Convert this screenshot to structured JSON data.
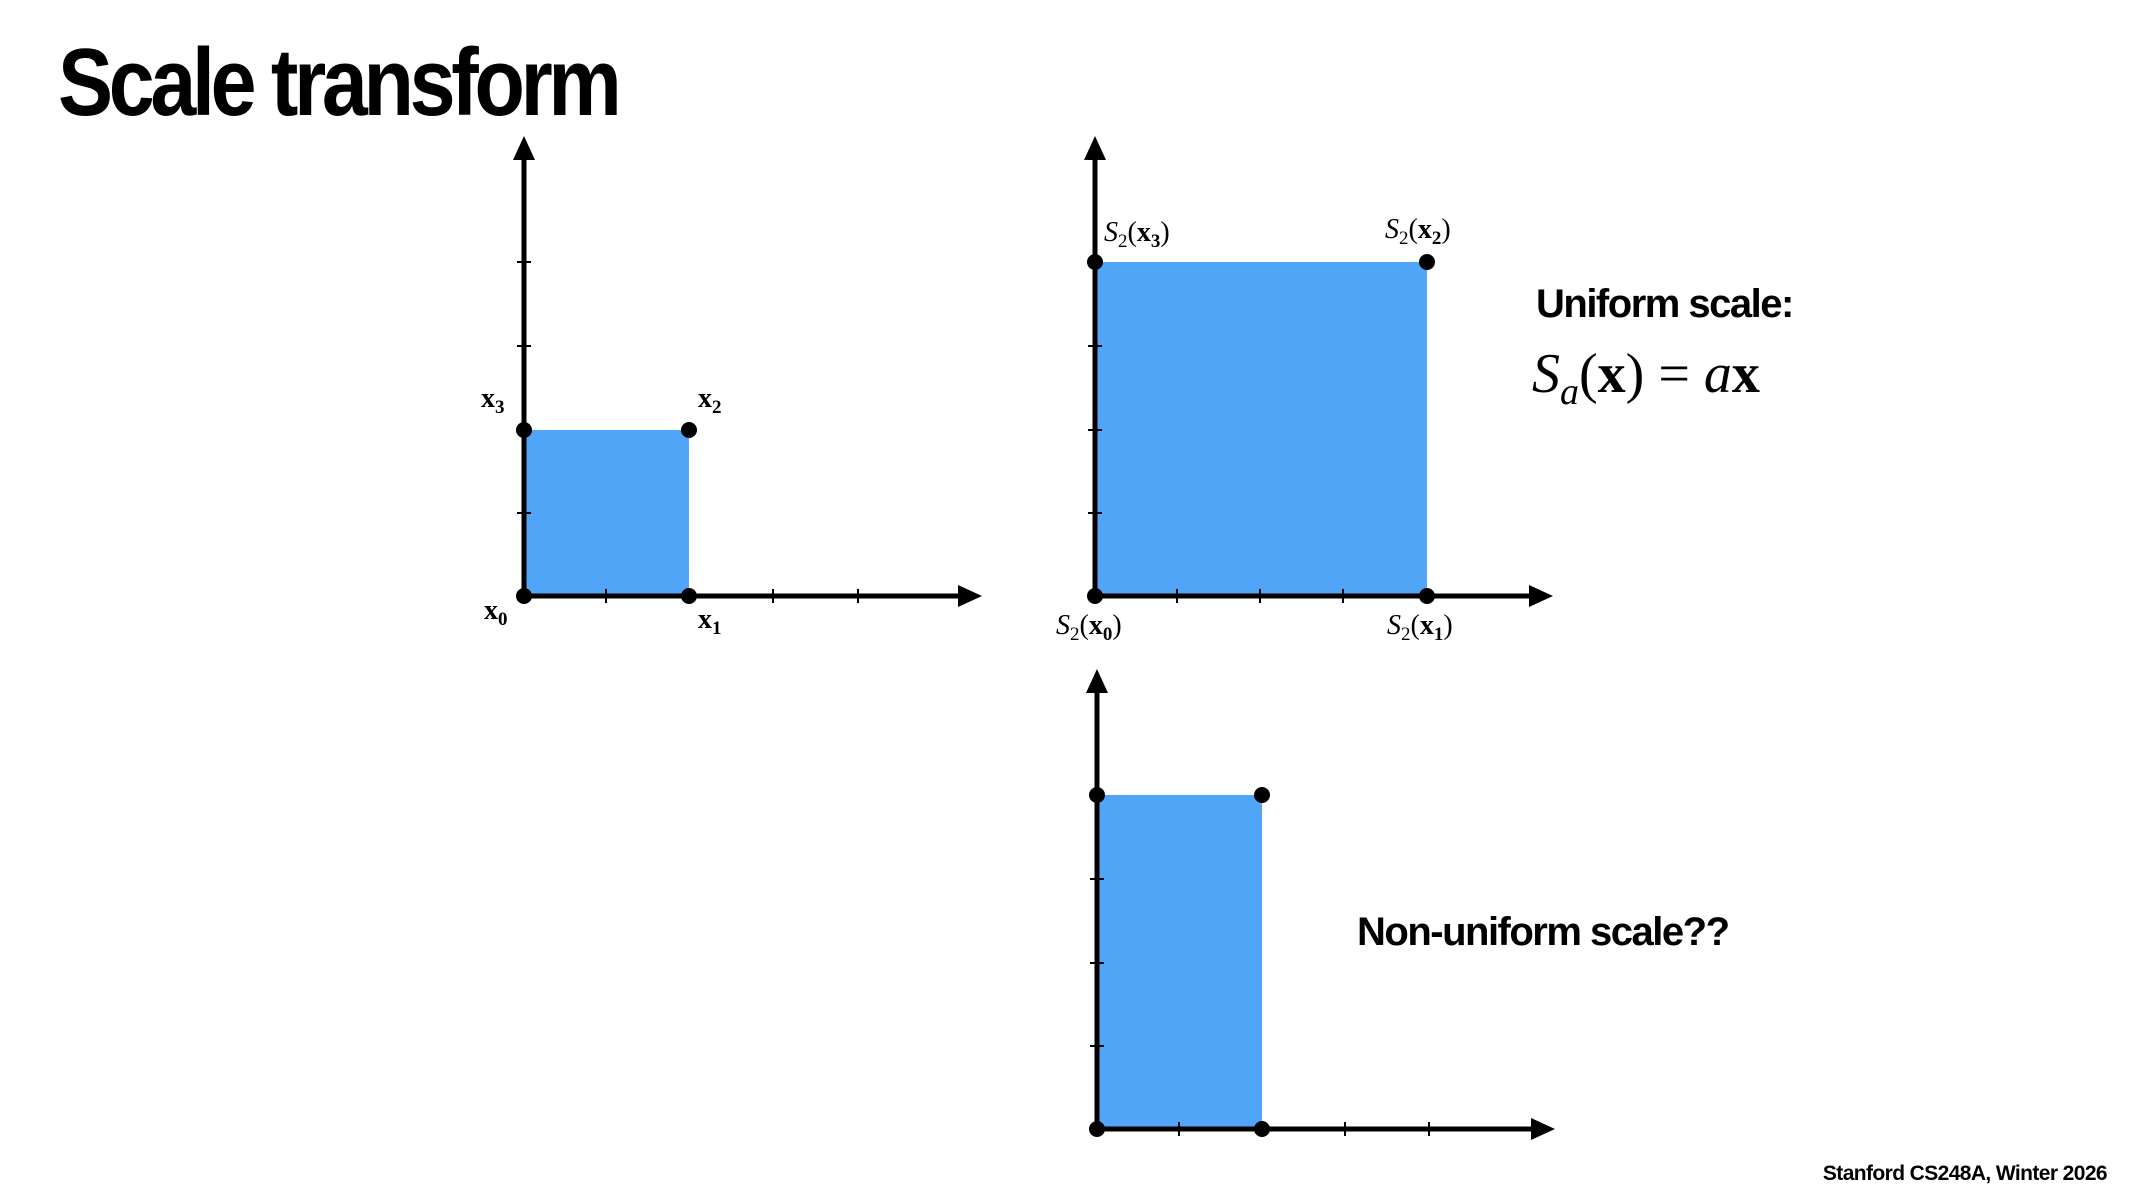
{
  "title": "Scale transform",
  "footer": "Stanford CS248A, Winter 2026",
  "fill_color": "#50a5f7",
  "axis_color": "#000000",
  "icons": {
    "axis_arrow": "arrowhead-icon",
    "vertex": "dot-icon"
  },
  "diagrams": {
    "original": {
      "labels": {
        "x0": {
          "base": "x",
          "sub": "0"
        },
        "x1": {
          "base": "x",
          "sub": "1"
        },
        "x2": {
          "base": "x",
          "sub": "2"
        },
        "x3": {
          "base": "x",
          "sub": "3"
        }
      }
    },
    "uniform": {
      "heading": "Uniform scale:",
      "formula": {
        "S": "S",
        "a_sub": "a",
        "open": "(",
        "x": "x",
        "close": ")",
        "eq": " = ",
        "a": "a",
        "x2": "x"
      },
      "labels": {
        "s0": {
          "S": "S",
          "Ssub": "2",
          "open": "(",
          "base": "x",
          "sub": "0",
          "close": ")"
        },
        "s1": {
          "S": "S",
          "Ssub": "2",
          "open": "(",
          "base": "x",
          "sub": "1",
          "close": ")"
        },
        "s2": {
          "S": "S",
          "Ssub": "2",
          "open": "(",
          "base": "x",
          "sub": "2",
          "close": ")"
        },
        "s3": {
          "S": "S",
          "Ssub": "2",
          "open": "(",
          "base": "x",
          "sub": "3",
          "close": ")"
        }
      }
    },
    "nonuniform": {
      "heading": "Non-uniform scale??"
    }
  }
}
